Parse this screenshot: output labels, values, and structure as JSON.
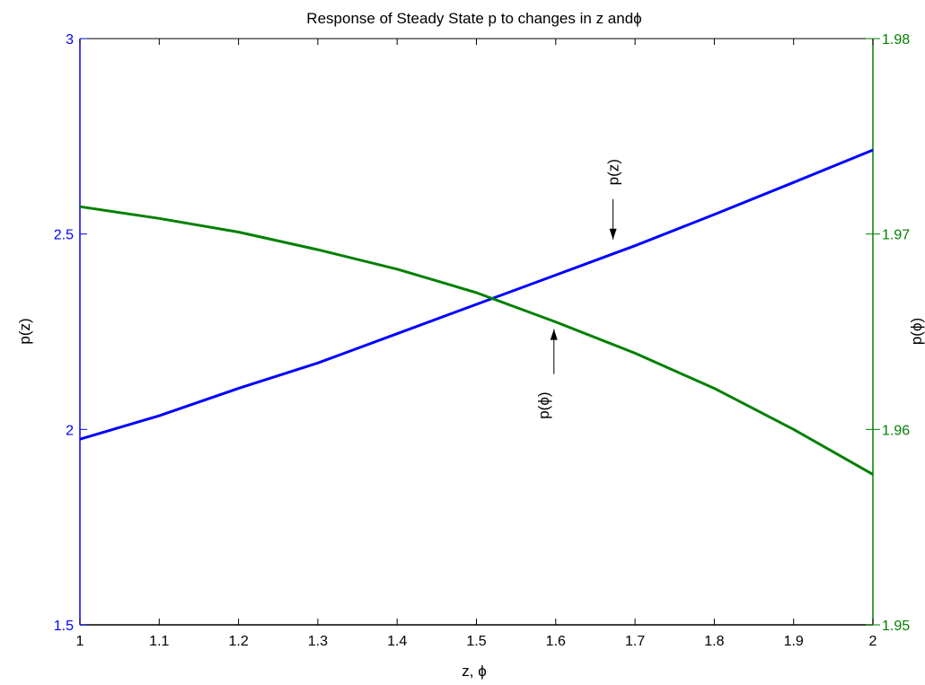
{
  "chart_data": {
    "type": "line",
    "title": "Response of Steady State p  to changes in z andϕ",
    "xlabel": "z,  ϕ",
    "ylabel_left": "p(z)",
    "ylabel_right": "p(ϕ)",
    "xlim": [
      1,
      2
    ],
    "ylim_left": [
      1.5,
      3
    ],
    "ylim_right": [
      1.95,
      1.98
    ],
    "x_ticks": [
      "1",
      "1.1",
      "1.2",
      "1.3",
      "1.4",
      "1.5",
      "1.6",
      "1.7",
      "1.8",
      "1.9",
      "2"
    ],
    "y_ticks_left": [
      "1.5",
      "2",
      "2.5",
      "3"
    ],
    "y_ticks_right": [
      "1.95",
      "1.96",
      "1.97",
      "1.98"
    ],
    "grid": false,
    "series": [
      {
        "name": "p(z)",
        "axis": "left",
        "color": "#0000ff",
        "x": [
          1.0,
          1.1,
          1.2,
          1.3,
          1.4,
          1.5,
          1.6,
          1.7,
          1.8,
          1.9,
          2.0
        ],
        "values": [
          1.975,
          2.035,
          2.105,
          2.17,
          2.245,
          2.32,
          2.395,
          2.47,
          2.55,
          2.632,
          2.715
        ]
      },
      {
        "name": "p(ϕ)",
        "axis": "right",
        "color": "#008000",
        "x": [
          1.0,
          1.1,
          1.2,
          1.3,
          1.4,
          1.5,
          1.6,
          1.7,
          1.8,
          1.9,
          2.0
        ],
        "values": [
          1.9714,
          1.9708,
          1.9701,
          1.9692,
          1.9682,
          1.967,
          1.9655,
          1.9639,
          1.9621,
          1.96,
          1.9577
        ]
      }
    ],
    "annotations": [
      {
        "text": "p(z)",
        "x": 1.67,
        "y": 2.47,
        "axis": "left",
        "arrow": "down"
      },
      {
        "text": "p(ϕ)",
        "x": 1.6,
        "y": 1.9655,
        "axis": "right",
        "arrow": "up"
      }
    ],
    "colors": {
      "left_axis": "#0000ff",
      "right_axis": "#008000",
      "frame": "#000000"
    }
  }
}
